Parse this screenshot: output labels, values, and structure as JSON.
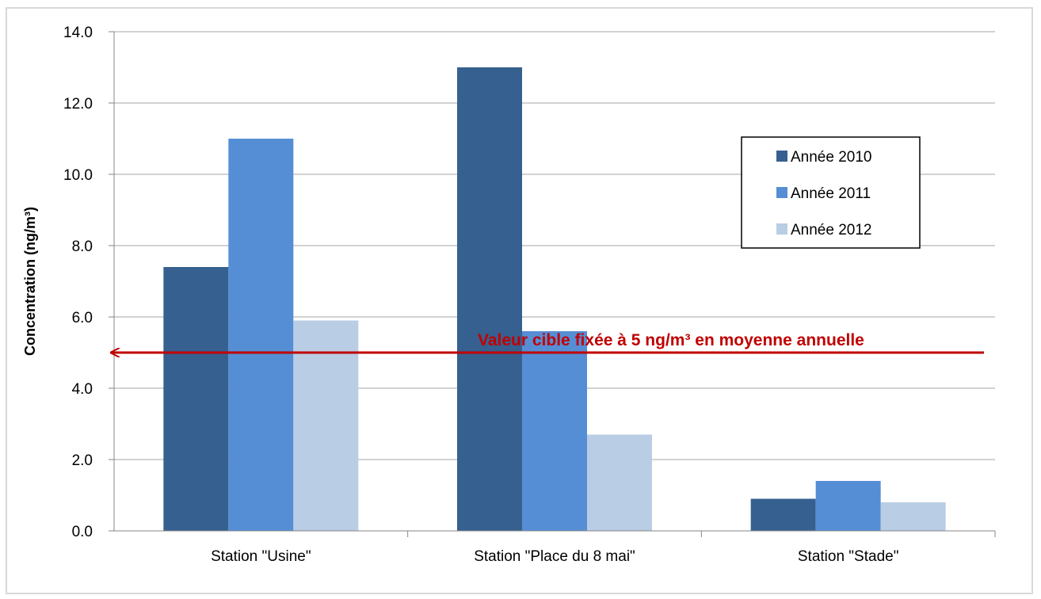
{
  "chart_data": {
    "type": "bar",
    "categories": [
      "Station \"Usine\"",
      "Station \"Place du 8 mai\"",
      "Station \"Stade\""
    ],
    "series": [
      {
        "name": "Année 2010",
        "values": [
          7.4,
          13.0,
          0.9
        ],
        "color": "#36608f"
      },
      {
        "name": "Année 2011",
        "values": [
          11.0,
          5.6,
          1.4
        ],
        "color": "#558ed5"
      },
      {
        "name": "Année 2012",
        "values": [
          5.9,
          2.7,
          0.8
        ],
        "color": "#b9cde5"
      }
    ],
    "yticks": [
      "0.0",
      "2.0",
      "4.0",
      "6.0",
      "8.0",
      "10.0",
      "12.0",
      "14.0"
    ],
    "ylim": [
      0,
      14
    ],
    "ylabel": "Concentration (ng/m³)",
    "xlabel": "",
    "grid": true,
    "legend_position": "top-right",
    "annotation": {
      "text": "Valeur cible fixée à 5 ng/m³ en moyenne annuelle",
      "value": 5,
      "color": "#c00000"
    }
  }
}
